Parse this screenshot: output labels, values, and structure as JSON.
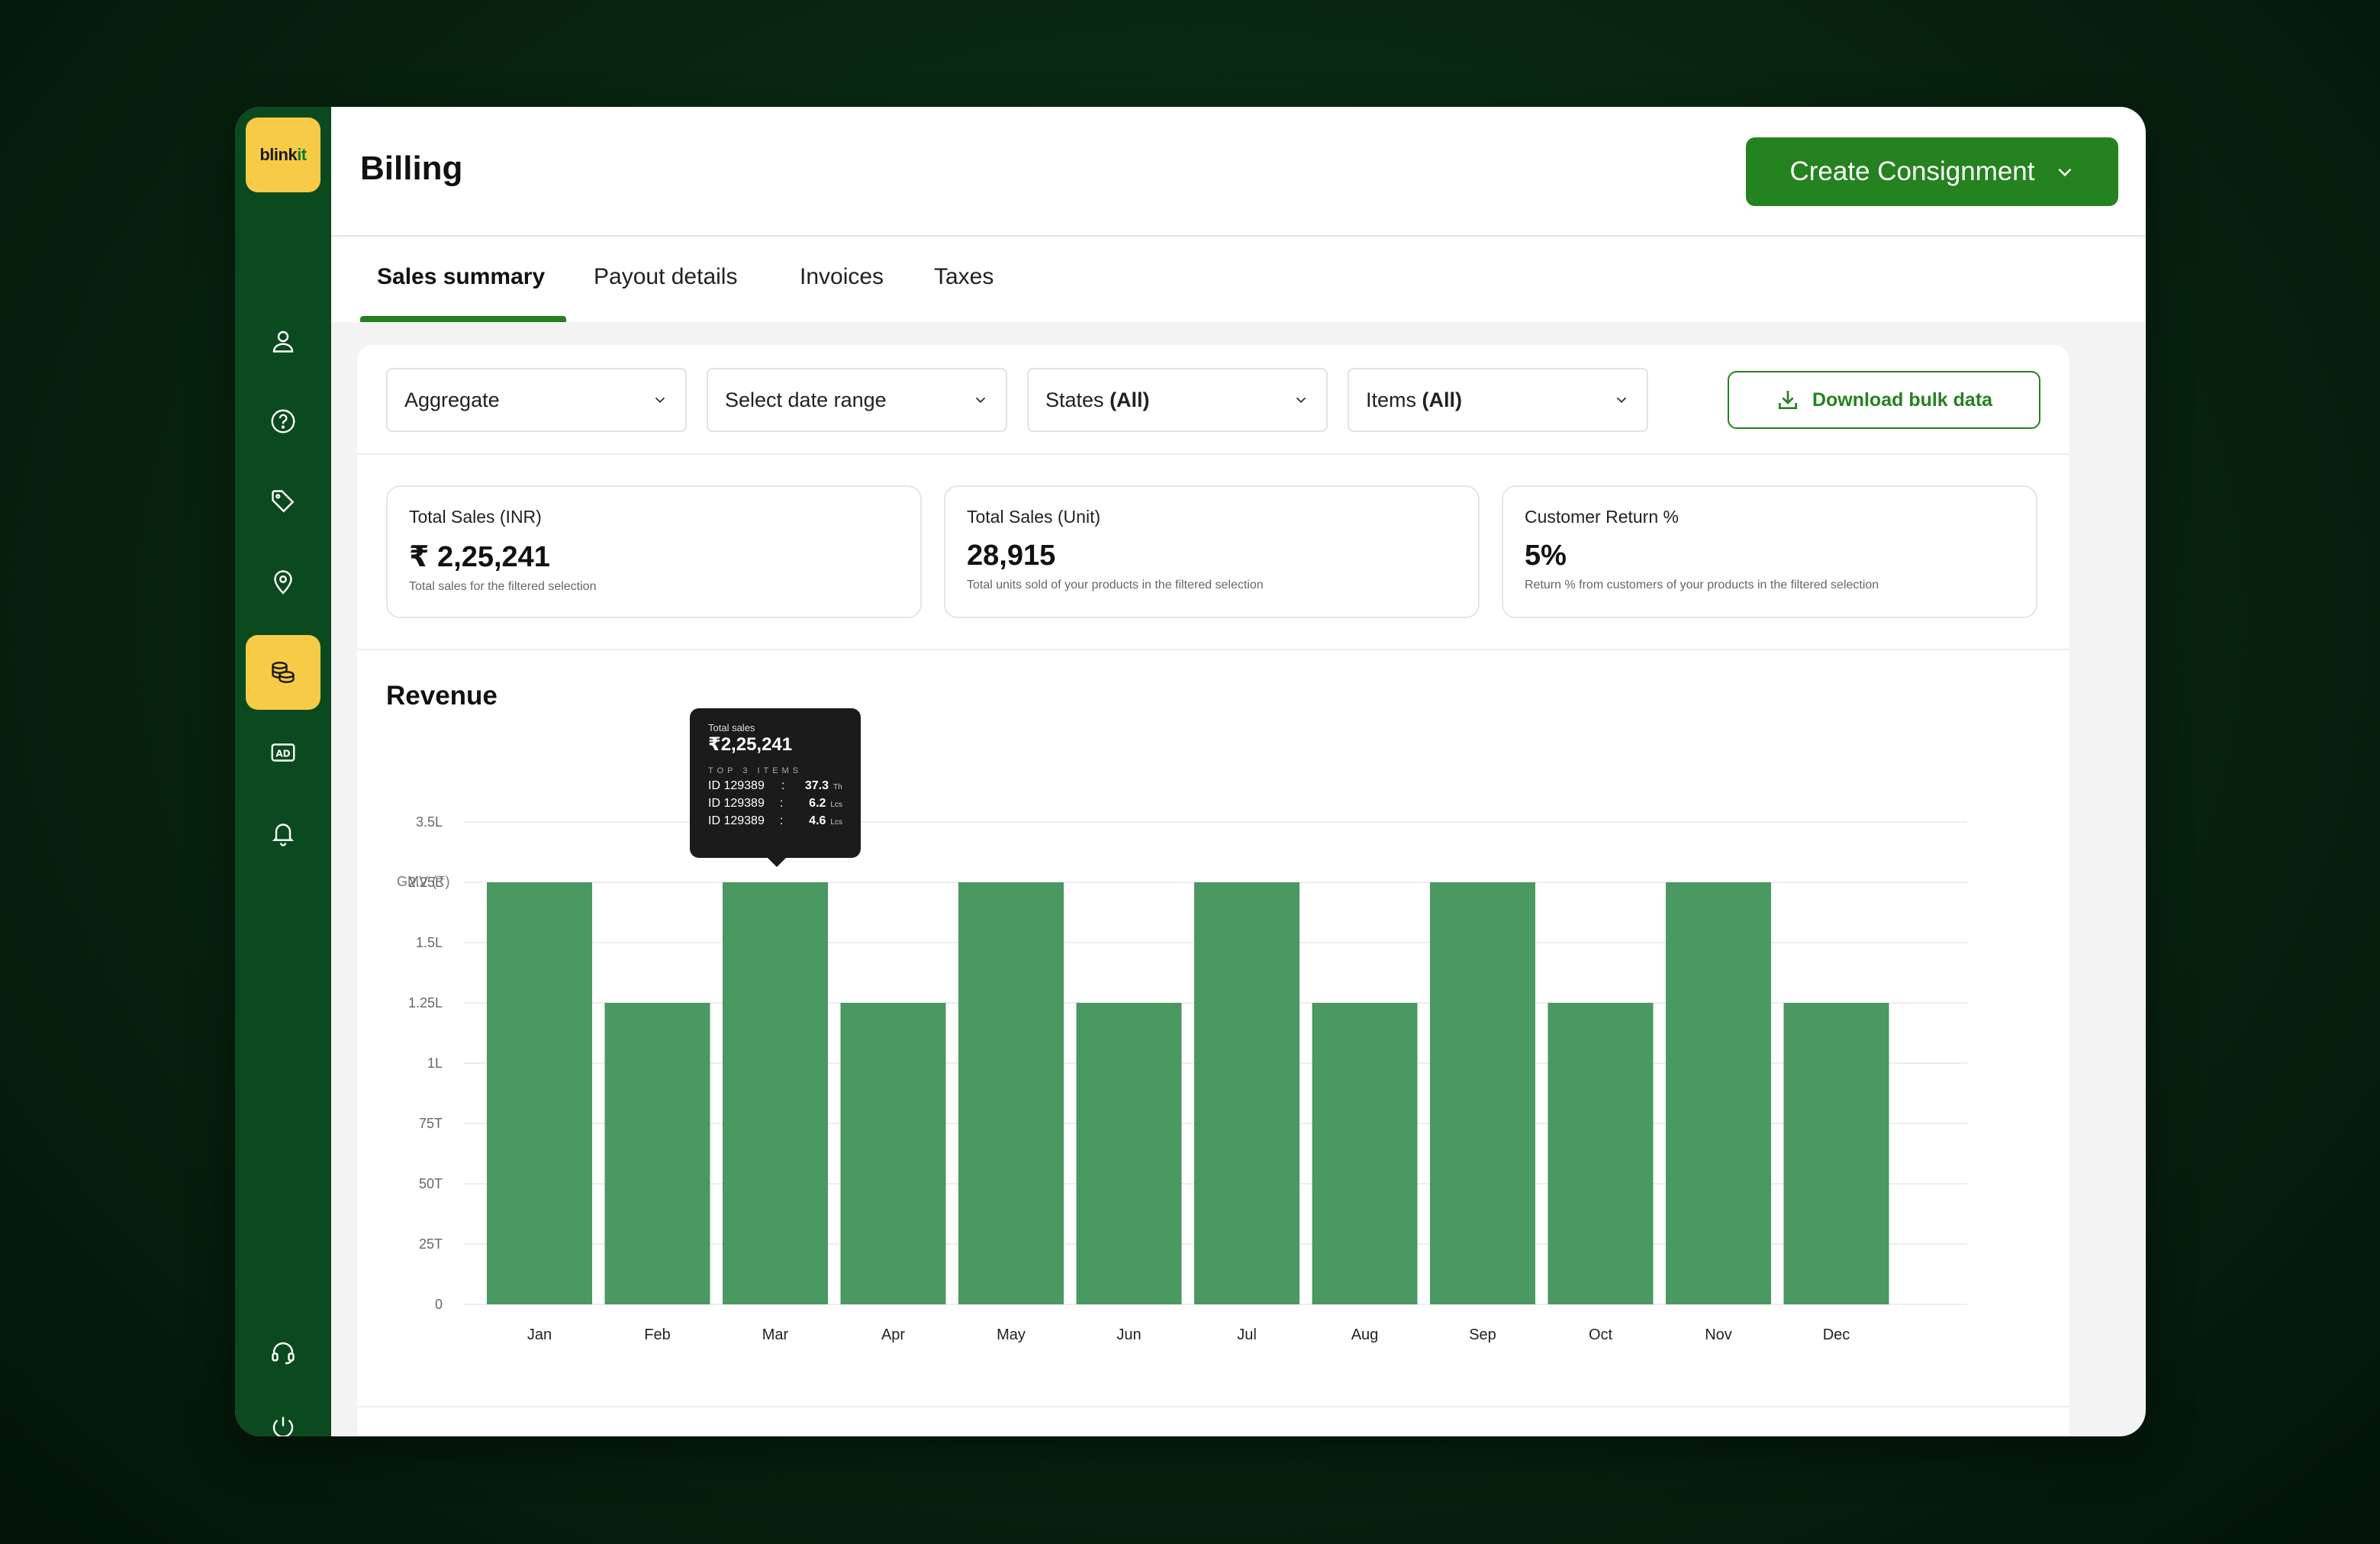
{
  "app": {
    "logo": {
      "text": "blink",
      "accent": "it"
    }
  },
  "colors": {
    "brand_green": "#24821f",
    "sidebar": "#0b4a1f",
    "accent_yellow": "#f7cb46",
    "bar": "#4a9862"
  },
  "sidebar": {
    "icons": [
      {
        "name": "user-icon"
      },
      {
        "name": "help-icon"
      },
      {
        "name": "tag-icon"
      },
      {
        "name": "location-icon"
      },
      {
        "name": "box-icon"
      },
      {
        "name": "billing-coins-icon",
        "active": true
      },
      {
        "name": "ad-icon"
      },
      {
        "name": "bell-icon"
      },
      {
        "name": "headset-icon"
      },
      {
        "name": "power-icon"
      }
    ]
  },
  "header": {
    "title": "Billing",
    "create_label": "Create Consignment"
  },
  "tabs": [
    "Sales summary",
    "Payout details",
    "Invoices",
    "Taxes"
  ],
  "filters": {
    "aggregate": "Aggregate",
    "date_range": "Select date range",
    "states": {
      "label": "States",
      "value": "(All)"
    },
    "items": {
      "label": "Items",
      "value": "(All)"
    },
    "download_label": "Download bulk data"
  },
  "kpis": [
    {
      "label": "Total Sales (INR)",
      "value": "₹ 2,25,241",
      "sub": "Total sales  for the filtered selection"
    },
    {
      "label": "Total Sales (Unit)",
      "value": "28,915",
      "sub": "Total units sold of your products in the filtered selection"
    },
    {
      "label": "Customer Return %",
      "value": "5%",
      "sub": "Return % from customers of your products in the filtered selection"
    }
  ],
  "revenue": {
    "title": "Revenue",
    "tooltip": {
      "label": "Total sales",
      "value": "₹2,25,241",
      "heading": "TOP 3 ITEMS",
      "rows": [
        {
          "id": "ID 129389",
          "colon": ":",
          "value": "37.3",
          "unit": "Th"
        },
        {
          "id": "ID 129389",
          "colon": ":",
          "value": "6.2",
          "unit": "Lcs"
        },
        {
          "id": "ID 129389",
          "colon": ":",
          "value": "4.6",
          "unit": "Lcs"
        }
      ]
    }
  },
  "chart_data": {
    "type": "bar",
    "title": "Revenue",
    "ylabel": "GMV (₹)",
    "xlabel": "",
    "categories": [
      "Jan",
      "Feb",
      "Mar",
      "Apr",
      "May",
      "Jun",
      "Jul",
      "Aug",
      "Sep",
      "Oct",
      "Nov",
      "Dec"
    ],
    "y_ticks": [
      "0",
      "25T",
      "50T",
      "75T",
      "1L",
      "1.25L",
      "1.5L",
      "2.25L",
      "3.5L"
    ],
    "values": [
      2.25,
      1.25,
      2.25,
      1.25,
      2.25,
      1.25,
      2.25,
      1.25,
      2.25,
      1.25,
      2.25,
      1.25
    ],
    "value_unit": "L (tick-aligned)",
    "grid": true,
    "legend": "none"
  }
}
